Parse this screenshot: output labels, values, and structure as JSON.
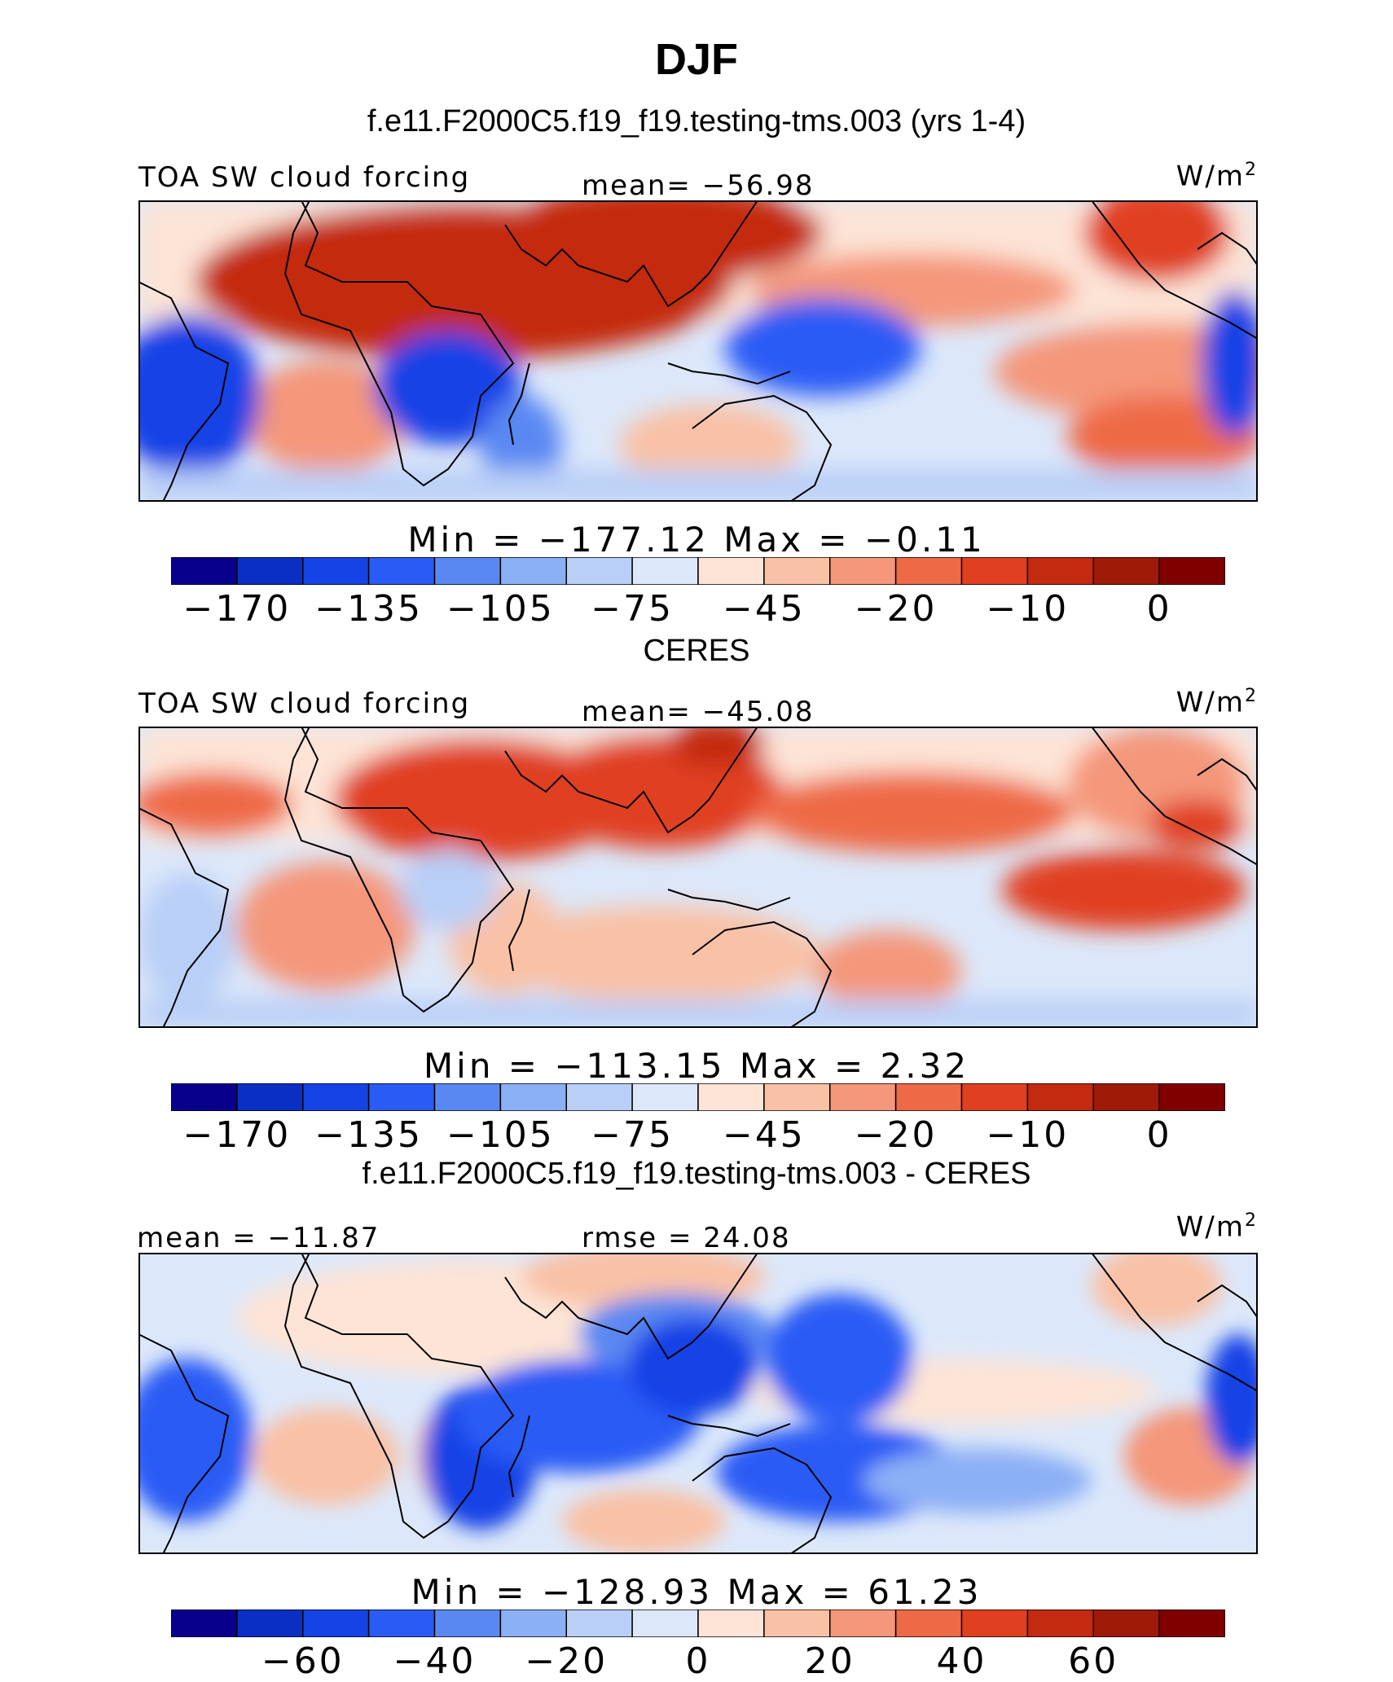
{
  "figure": {
    "season": "DJF",
    "case_title": "f.e11.F2000C5.f19_f19.testing-tms.003 (yrs 1-4)",
    "obs_title": "CERES",
    "diff_title": "f.e11.F2000C5.f19_f19.testing-tms.003 - CERES"
  },
  "panels": [
    {
      "variable": "TOA SW cloud forcing",
      "center_label": "mean= −56.98",
      "units": "W/m",
      "units_sup": "2",
      "stats": "Min  =  −177.12  Max  =   −0.11",
      "colorbar_ticks": [
        "−170",
        "−135",
        "−105",
        "−75",
        "−45",
        "−20",
        "−10",
        "0"
      ]
    },
    {
      "variable": "TOA SW cloud forcing",
      "center_label": "mean= −45.08",
      "units": "W/m",
      "units_sup": "2",
      "stats": "Min  =  −113.15  Max  =     2.32",
      "colorbar_ticks": [
        "−170",
        "−135",
        "−105",
        "−75",
        "−45",
        "−20",
        "−10",
        "0"
      ]
    },
    {
      "left_label": "mean = −11.87",
      "center_label": "rmse =   24.08",
      "units": "W/m",
      "units_sup": "2",
      "stats": "Min  =  −128.93  Max  =   61.23",
      "colorbar_ticks": [
        "−60",
        "−40",
        "−20",
        "0",
        "20",
        "40",
        "60"
      ]
    }
  ],
  "colorbar_colors": [
    "#08008c",
    "#0a2fc4",
    "#1543e6",
    "#2a5cf5",
    "#5a88f2",
    "#8cb0f5",
    "#b9cff7",
    "#dce8fa",
    "#fde4d6",
    "#f9c1a6",
    "#f4977a",
    "#ee6a47",
    "#e04020",
    "#c42a10",
    "#a01a08",
    "#800000"
  ]
}
